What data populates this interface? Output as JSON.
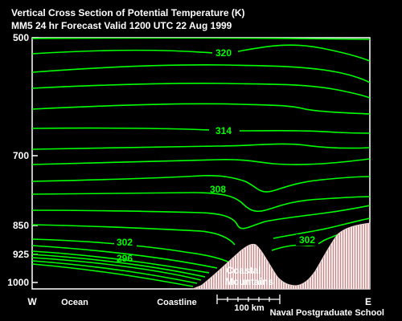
{
  "chart_data": {
    "type": "contour",
    "title": "Vertical Cross Section of Potential Temperature (K)",
    "subtitle": "MM5 24 hr Forecast Valid 1200 UTC  22 Aug 1999",
    "y_ticks": [
      "500",
      "700",
      "850",
      "925",
      "1000"
    ],
    "x_labels": {
      "west": "W",
      "ocean": "Ocean",
      "coastline": "Coastline",
      "east": "E"
    },
    "scale_bar_label": "100 km",
    "credit": "Naval Postgraduate School",
    "terrain_label_1": "Coastal",
    "terrain_label_2": "Mountains",
    "contour_labels": [
      "320",
      "314",
      "308",
      "302",
      "302",
      "296"
    ],
    "line_color": "#00ff00",
    "terrain_color": "#f2dede"
  }
}
